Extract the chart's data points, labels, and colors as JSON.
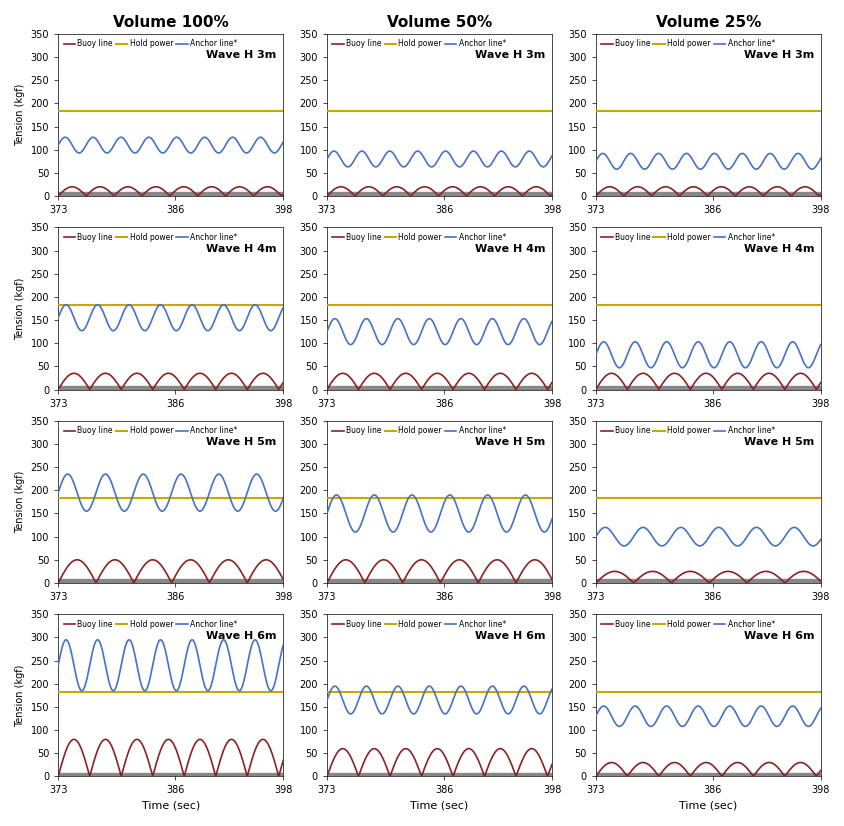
{
  "col_titles": [
    "Volume 100%",
    "Volume 50%",
    "Volume 25%"
  ],
  "row_labels": [
    "Wave H 3m",
    "Wave H 4m",
    "Wave H 5m",
    "Wave H 6m"
  ],
  "x_start": 373,
  "x_end": 398,
  "x_ticks": [
    373,
    386,
    398
  ],
  "y_lim": [
    0,
    350
  ],
  "y_ticks": [
    0,
    50,
    100,
    150,
    200,
    250,
    300,
    350
  ],
  "xlabel": "Time (sec)",
  "ylabel": "Tension (kgf)",
  "legend_labels": [
    "Buoy line",
    "Hold power",
    "Anchor line*"
  ],
  "buoy_color": "#8B2222",
  "hold_color": "#C8A800",
  "anchor_color": "#4472C4",
  "gray_color": "#888888",
  "hold_power_values": [
    183,
    183,
    183,
    183,
    183,
    183,
    183,
    183,
    183,
    183,
    183,
    183
  ],
  "buoy_amplitudes": [
    20,
    20,
    20,
    35,
    35,
    35,
    50,
    50,
    25,
    80,
    60,
    30
  ],
  "anchor_amplitudes": [
    17,
    17,
    17,
    28,
    28,
    28,
    40,
    40,
    20,
    55,
    30,
    22
  ],
  "anchor_offsets": [
    110,
    80,
    75,
    155,
    125,
    75,
    195,
    150,
    100,
    240,
    165,
    130
  ],
  "wave_periods": [
    3.1,
    3.1,
    3.1,
    3.5,
    3.5,
    3.5,
    4.2,
    4.2,
    4.2,
    3.5,
    3.5,
    3.5
  ],
  "phase_shifts": [
    0.0,
    0.0,
    0.0,
    0.0,
    0.0,
    0.0,
    0.0,
    0.0,
    0.0,
    0.0,
    0.0,
    0.0
  ]
}
